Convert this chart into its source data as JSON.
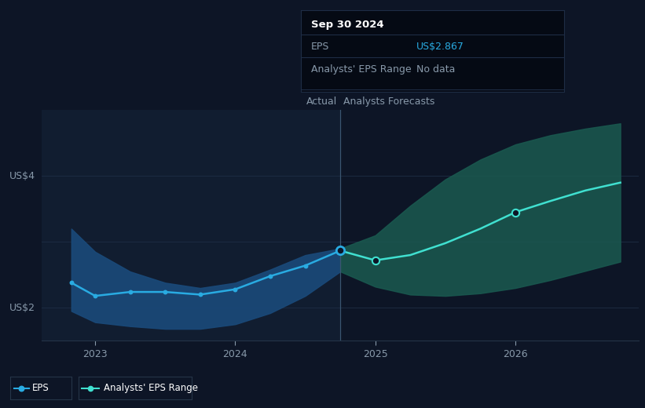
{
  "bg_color": "#0d1526",
  "plot_bg_color": "#0d1526",
  "grid_color": "#1e2d45",
  "divider_bg_color": "#141f35",
  "actual_x": [
    2022.83,
    2023.0,
    2023.25,
    2023.5,
    2023.75,
    2024.0,
    2024.25,
    2024.5,
    2024.75
  ],
  "actual_y": [
    2.38,
    2.18,
    2.24,
    2.24,
    2.2,
    2.28,
    2.48,
    2.64,
    2.867
  ],
  "actual_band_upper": [
    3.2,
    2.85,
    2.55,
    2.38,
    2.3,
    2.38,
    2.58,
    2.8,
    2.9
  ],
  "actual_band_lower": [
    1.95,
    1.78,
    1.72,
    1.68,
    1.68,
    1.75,
    1.92,
    2.18,
    2.55
  ],
  "forecast_x": [
    2024.75,
    2025.0,
    2025.25,
    2025.5,
    2025.75,
    2026.0,
    2026.25,
    2026.5,
    2026.75
  ],
  "forecast_y": [
    2.867,
    2.72,
    2.8,
    2.98,
    3.2,
    3.45,
    3.62,
    3.78,
    3.9
  ],
  "forecast_band_upper": [
    2.9,
    3.1,
    3.55,
    3.95,
    4.25,
    4.48,
    4.62,
    4.72,
    4.8
  ],
  "forecast_band_lower": [
    2.55,
    2.32,
    2.2,
    2.18,
    2.22,
    2.3,
    2.42,
    2.56,
    2.7
  ],
  "eps_color": "#29abe2",
  "forecast_color": "#40e0d0",
  "actual_band_color": "#1a4a7a",
  "forecast_band_color": "#1a5a50",
  "ylim": [
    1.5,
    5.0
  ],
  "xlim": [
    2022.62,
    2026.88
  ],
  "divider_x": 2024.75,
  "actual_label": "Actual",
  "forecast_label": "Analysts Forecasts",
  "xtick_vals": [
    2023,
    2024,
    2025,
    2026
  ],
  "xtick_labels": [
    "2023",
    "2024",
    "2025",
    "2026"
  ],
  "tooltip_title": "Sep 30 2024",
  "tooltip_eps_label": "EPS",
  "tooltip_eps_value": "US$2.867",
  "tooltip_range_label": "Analysts' EPS Range",
  "tooltip_range_value": "No data",
  "tooltip_eps_color": "#29abe2",
  "legend_eps_label": "EPS",
  "legend_range_label": "Analysts' EPS Range"
}
